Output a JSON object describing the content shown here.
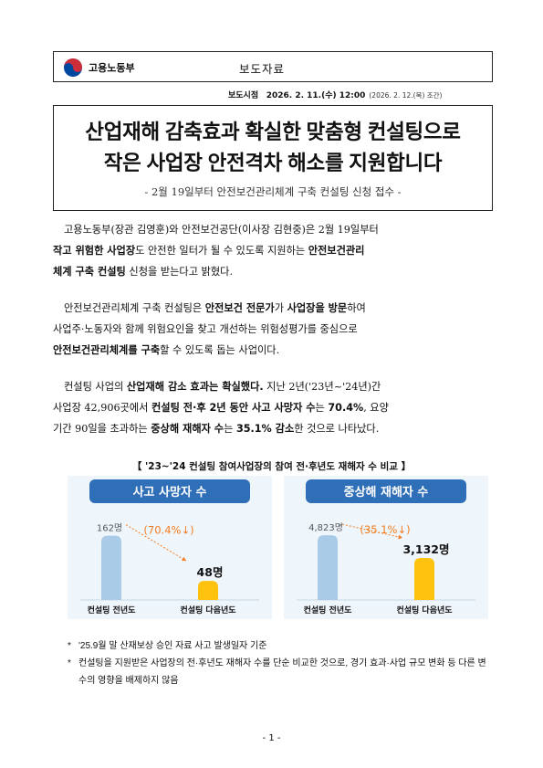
{
  "header": {
    "ministry": "고용노동부",
    "doc_type": "보도자료",
    "logo_icon": "taegeuk-logo-icon",
    "logo_colors": {
      "red": "#cd2e3a",
      "blue": "#0047a0"
    }
  },
  "embargo": {
    "label": "보도시점",
    "datetime": "2026. 2. 11.(수) 12:00",
    "prepared": "(2026. 2. 12.(목) 조간)"
  },
  "title": {
    "line1": "산업재해 감축효과 확실한 맞춤형 컨설팅으로",
    "line2": "작은 사업장 안전격차 해소를 지원합니다",
    "subtitle": "- 2월 19일부터 안전보건관리체계 구축 컨설팅 신청 접수 -"
  },
  "body": {
    "p1": {
      "line1": "고용노동부(장관 김영훈)와 안전보건공단(이사장 김현중)은 2월 19일부터",
      "line2_b1": "작고 위험한 사업장",
      "line2_t1": "도 안전한 일터가 될 수 있도록 지원하는 ",
      "line2_b2": "안전보건관리",
      "line3_b1": "체계 구축 컨설팅",
      "line3_t1": " 신청을 받는다고 밝혔다."
    },
    "p2": {
      "line1_t1": "안전보건관리체계 구축 컨설팅은 ",
      "line1_b1": "안전보건 전문가",
      "line1_t2": "가 ",
      "line1_b2": "사업장을 방문",
      "line1_t3": "하여",
      "line2": "사업주·노동자와 함께 위험요인을 찾고 개선하는 위험성평가를 중심으로",
      "line3_b1": "안전보건관리체계를 구축",
      "line3_t1": "할 수 있도록 돕는 사업이다."
    },
    "p3": {
      "line1_t1": "컨설팅 사업의 ",
      "line1_b1": "산업재해 감소 효과는 확실했다.",
      "line1_t2": " 지난 2년('23년~'24년)간",
      "line2_t1": "사업장 42,906곳에서 ",
      "line2_b1": "컨설팅 전·후 2년 동안 사고 사망자 수",
      "line2_t2": "는 ",
      "line2_b2": "70.4%",
      "line2_t3": ", 요양",
      "line3_t1": "기간 90일을 초과하는 ",
      "line3_b1": "중상해 재해자 수",
      "line3_t2": "는 ",
      "line3_b2": "35.1% 감소",
      "line3_t3": "한 것으로 나타났다."
    }
  },
  "chart_title": "【 '23~'24 컨설팅 참여사업장의 참여 전·후년도 재해자 수 비교 】",
  "chart_data": [
    {
      "type": "bar",
      "title": "사고 사망자 수",
      "categories": [
        "컨설팅 전년도",
        "컨설팅 다음년도"
      ],
      "values": [
        162,
        48
      ],
      "value_labels": [
        "162명",
        "48명"
      ],
      "change_label": "(70.4%↓)",
      "ylim": [
        0,
        230
      ],
      "colors": [
        "#a9cbe8",
        "#ffc20e"
      ],
      "header_color": "#2f6fb7",
      "change_color": "#f47c20"
    },
    {
      "type": "bar",
      "title": "중상해 재해자 수",
      "categories": [
        "컨설팅 전년도",
        "컨설팅 다음년도"
      ],
      "values": [
        4823,
        3132
      ],
      "value_labels": [
        "4,823명",
        "3,132명"
      ],
      "change_label": "(35.1%↓)",
      "ylim": [
        0,
        6800
      ],
      "colors": [
        "#a9cbe8",
        "#ffc20e"
      ],
      "header_color": "#2f6fb7",
      "change_color": "#f47c20"
    }
  ],
  "notes": [
    {
      "mark": "*",
      "text": "'25.9월 말 산재보상 승인 자료 사고 발생일자 기준"
    },
    {
      "mark": "*",
      "text": "컨설팅을 지원받은 사업장의 전·후년도 재해자 수를 단순 비교한 것으로, 경기 효과·사업 규모 변화 등 다른 변수의 영향을 배제하지 않음"
    }
  ],
  "page_number": "- 1 -"
}
